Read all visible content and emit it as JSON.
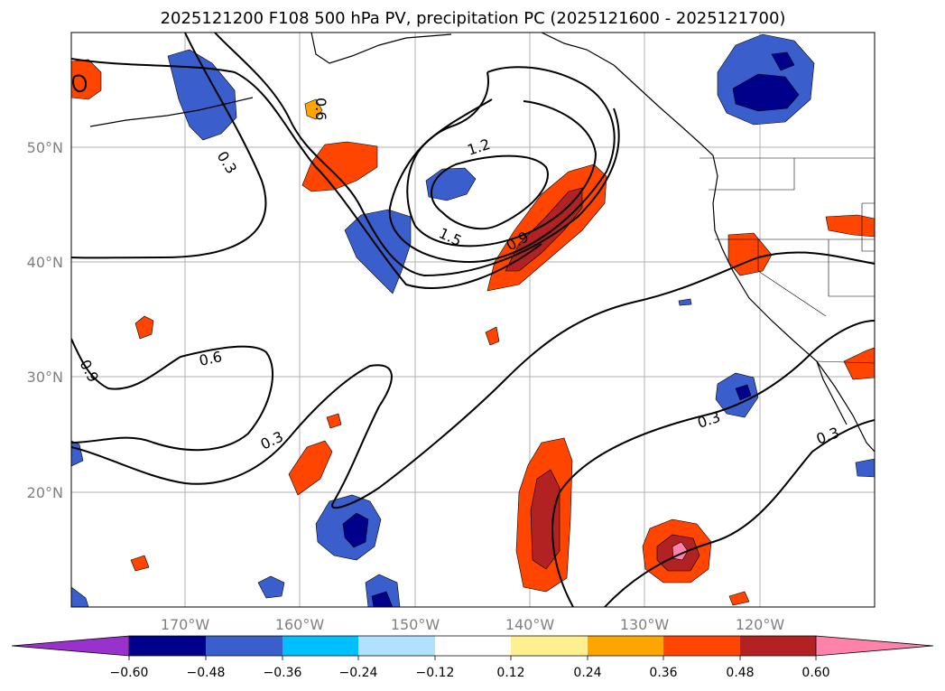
{
  "title": "2025121200 F108 500 hPa PV, precipitation PC (2025121600 - 2025121700)",
  "longitude_labels": [
    "170°W",
    "160°W",
    "150°W",
    "140°W",
    "130°W",
    "120°W"
  ],
  "latitude_labels": [
    "50°N",
    "40°N",
    "30°N",
    "20°N"
  ],
  "contour_labels": [
    "0.3",
    "0.6",
    "0.9",
    "1.2",
    "1.5",
    "0.3",
    "0.6",
    "0.9",
    "0.3",
    "0.3",
    "0.3"
  ],
  "colorbar": {
    "ticks": [
      "−0.60",
      "−0.48",
      "−0.36",
      "−0.24",
      "−0.12",
      "0.12",
      "0.24",
      "0.36",
      "0.48",
      "0.60"
    ],
    "colors": [
      "#9932cc",
      "#00008b",
      "#3a5fcd",
      "#00bfff",
      "#b0e2ff",
      "#ffffff",
      "#fff08f",
      "#ffa500",
      "#ff4500",
      "#b22222",
      "#ff82ab"
    ]
  }
}
